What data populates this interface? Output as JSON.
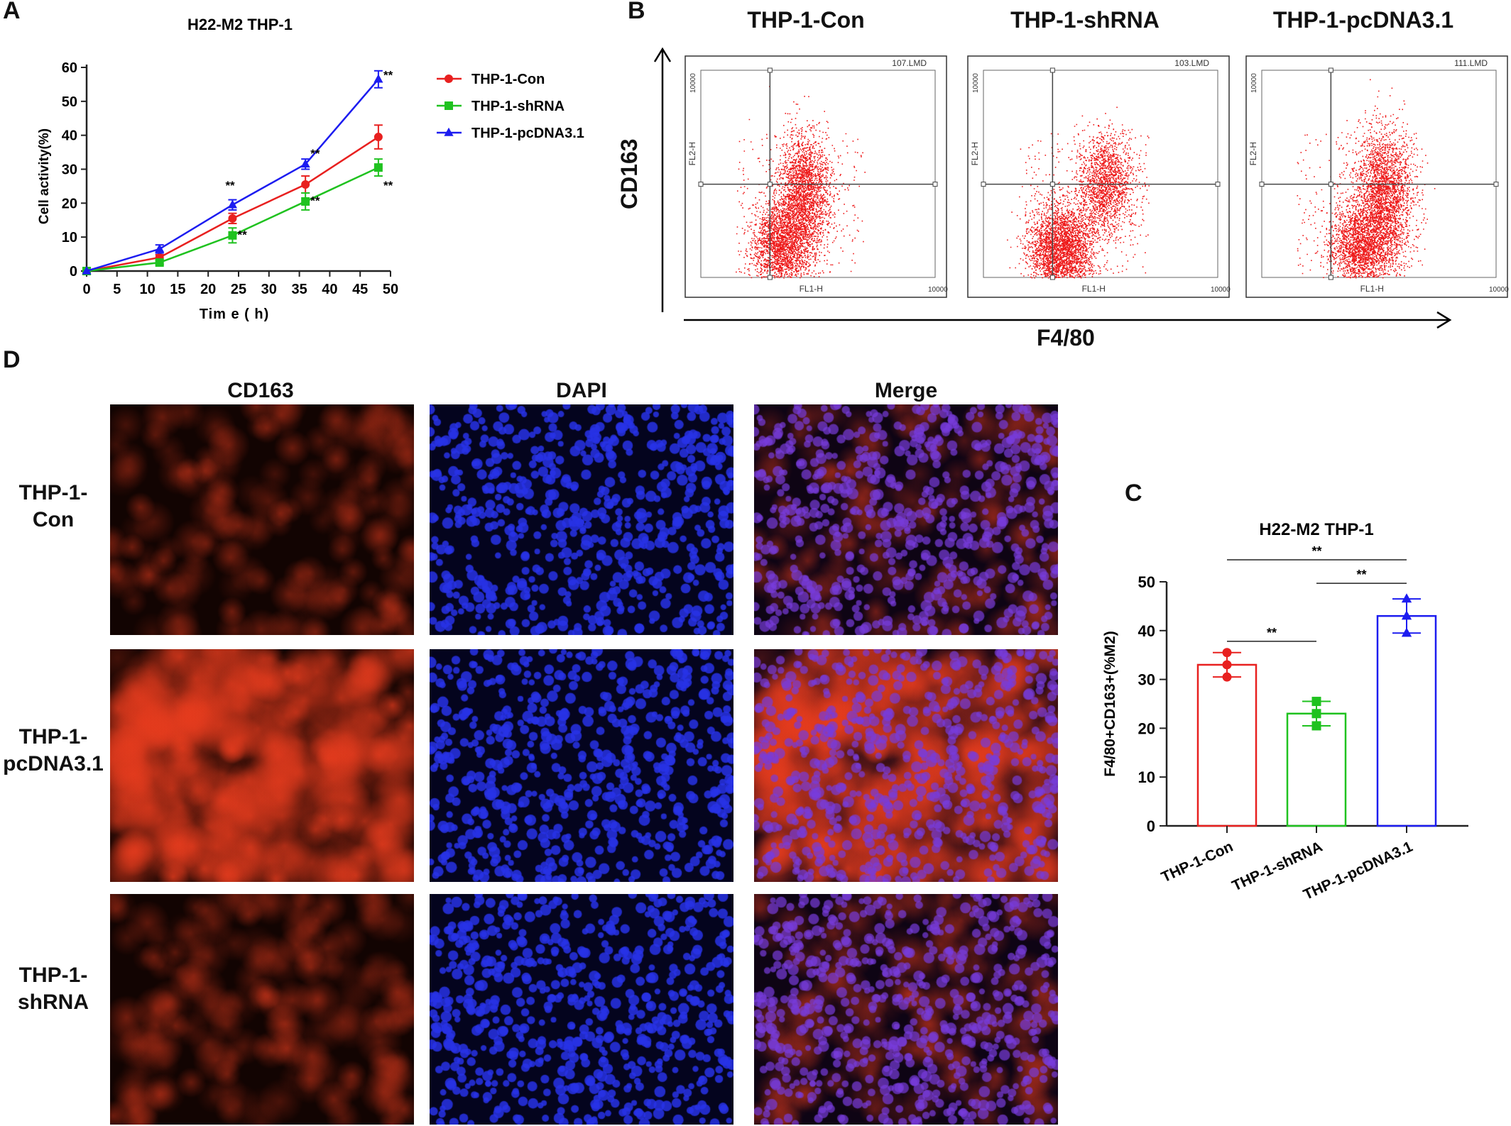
{
  "panels": {
    "a": "A",
    "b": "B",
    "c": "C",
    "d": "D"
  },
  "chart_data": [
    {
      "id": "A",
      "type": "line",
      "title": "H22-M2 THP-1",
      "xlabel": "Tim e ( h)",
      "ylabel": "Cell activity(%)",
      "xlim": [
        0,
        50
      ],
      "ylim": [
        0,
        60
      ],
      "xticks": [
        "0",
        "5",
        "10",
        "15",
        "20",
        "25",
        "30",
        "35",
        "40",
        "45",
        "50"
      ],
      "yticks": [
        "0",
        "10",
        "20",
        "30",
        "40",
        "50",
        "60"
      ],
      "x": [
        0,
        12,
        24,
        36,
        48
      ],
      "series": [
        {
          "name": "THP-1-Con",
          "color": "#e8201f",
          "marker": "circle",
          "values": [
            0,
            4,
            15.5,
            25.5,
            39.5
          ],
          "errors": [
            0,
            0.8,
            1.5,
            2.5,
            3.5
          ]
        },
        {
          "name": "THP-1-shRNA",
          "color": "#1fc21f",
          "marker": "square",
          "values": [
            0,
            2.5,
            10.5,
            20.5,
            30.5
          ],
          "errors": [
            0,
            0.6,
            2.2,
            2.5,
            2.5
          ]
        },
        {
          "name": "THP-1-pcDNA3.1",
          "color": "#1c1cf0",
          "marker": "triangle",
          "values": [
            0,
            6.5,
            19.5,
            31.5,
            56.5
          ],
          "errors": [
            0,
            1.2,
            1.5,
            1.5,
            2.5
          ]
        }
      ],
      "significance": [
        {
          "x": 24,
          "y": 24,
          "label": "**"
        },
        {
          "x": 26,
          "y": 9.5,
          "label": "**"
        },
        {
          "x": 38,
          "y": 33.5,
          "label": "**"
        },
        {
          "x": 38,
          "y": 19.5,
          "label": "**"
        },
        {
          "x": 50,
          "y": 56.5,
          "label": "**"
        },
        {
          "x": 50,
          "y": 24,
          "label": "**"
        }
      ],
      "legend_position": "right"
    },
    {
      "id": "C",
      "type": "bar",
      "title": "H22-M2 THP-1",
      "xlabel": "",
      "ylabel": "F4/80+CD163+(%M2)",
      "ylim": [
        0,
        50
      ],
      "yticks": [
        "0",
        "10",
        "20",
        "30",
        "40",
        "50"
      ],
      "categories": [
        "THP-1-Con",
        "THP-1-shRNA",
        "THP-1-pcDNA3.1"
      ],
      "colors": [
        "#e8201f",
        "#1fc21f",
        "#1c1cf0"
      ],
      "markers": [
        "circle",
        "square",
        "triangle"
      ],
      "values": [
        33,
        23,
        43
      ],
      "errors": [
        2.5,
        2.5,
        3.5
      ],
      "points": [
        [
          35.5,
          33,
          30.5
        ],
        [
          25.5,
          23,
          20.5
        ],
        [
          46.5,
          43,
          39.5
        ]
      ],
      "significance": [
        {
          "from": 0,
          "to": 2,
          "label": "**"
        },
        {
          "from": 1,
          "to": 2,
          "label": "**"
        },
        {
          "from": 0,
          "to": 1,
          "label": "**"
        }
      ]
    }
  ],
  "flow": {
    "y_label": "CD163",
    "x_label": "F4/80",
    "plots": [
      {
        "title": "THP-1-Con",
        "file": "107.LMD",
        "ylab": "FL2-H",
        "xlab": "FL1-H",
        "ymax": "10000",
        "xmax": "10000"
      },
      {
        "title": "THP-1-shRNA",
        "file": "103.LMD",
        "ylab": "FL2-H",
        "xlab": "FL1-H",
        "ymax": "10000",
        "xmax": "10000"
      },
      {
        "title": "THP-1-pcDNA3.1",
        "file": "111.LMD",
        "ylab": "FL2-H",
        "xlab": "FL1-H",
        "ymax": "10000",
        "xmax": "10000"
      }
    ]
  },
  "microscopy": {
    "columns": [
      "CD163",
      "DAPI",
      "Merge"
    ],
    "rows": [
      {
        "label": "THP-1-\nCon",
        "cd163_intensity": 0.35
      },
      {
        "label": "THP-1-\npcDNA3.1",
        "cd163_intensity": 0.85
      },
      {
        "label": "THP-1-\nshRNA",
        "cd163_intensity": 0.4
      }
    ]
  }
}
